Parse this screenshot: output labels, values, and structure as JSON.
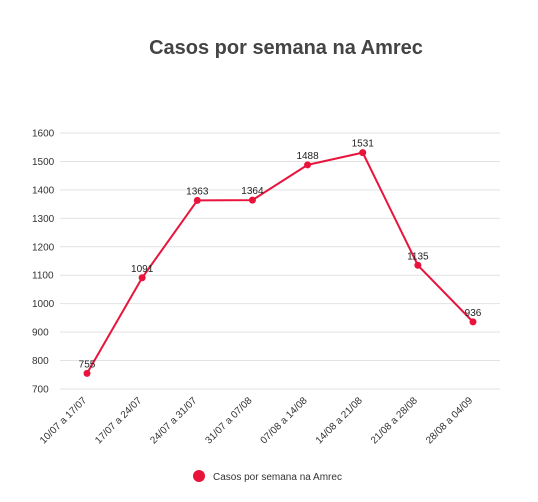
{
  "chart_data": {
    "type": "line",
    "title": "Casos por semana na Amrec",
    "categories": [
      "10/07 a 17/07",
      "17/07 a 24/07",
      "24/07 a 31/07",
      "31/07 a 07/08",
      "07/08 a 14/08",
      "14/08 a 21/08",
      "21/08 a 28/08",
      "28/08 a 04/09"
    ],
    "series": [
      {
        "name": "Casos por semana na Amrec",
        "values": [
          755,
          1091,
          1363,
          1364,
          1488,
          1531,
          1135,
          936
        ]
      }
    ],
    "ylim": [
      700,
      1600
    ],
    "yticks": [
      700,
      800,
      900,
      1000,
      1100,
      1200,
      1300,
      1400,
      1500,
      1600
    ],
    "grid": true,
    "legend": "bottom",
    "colors": {
      "series": "#e8143c",
      "grid": "#e2e2e2"
    }
  }
}
